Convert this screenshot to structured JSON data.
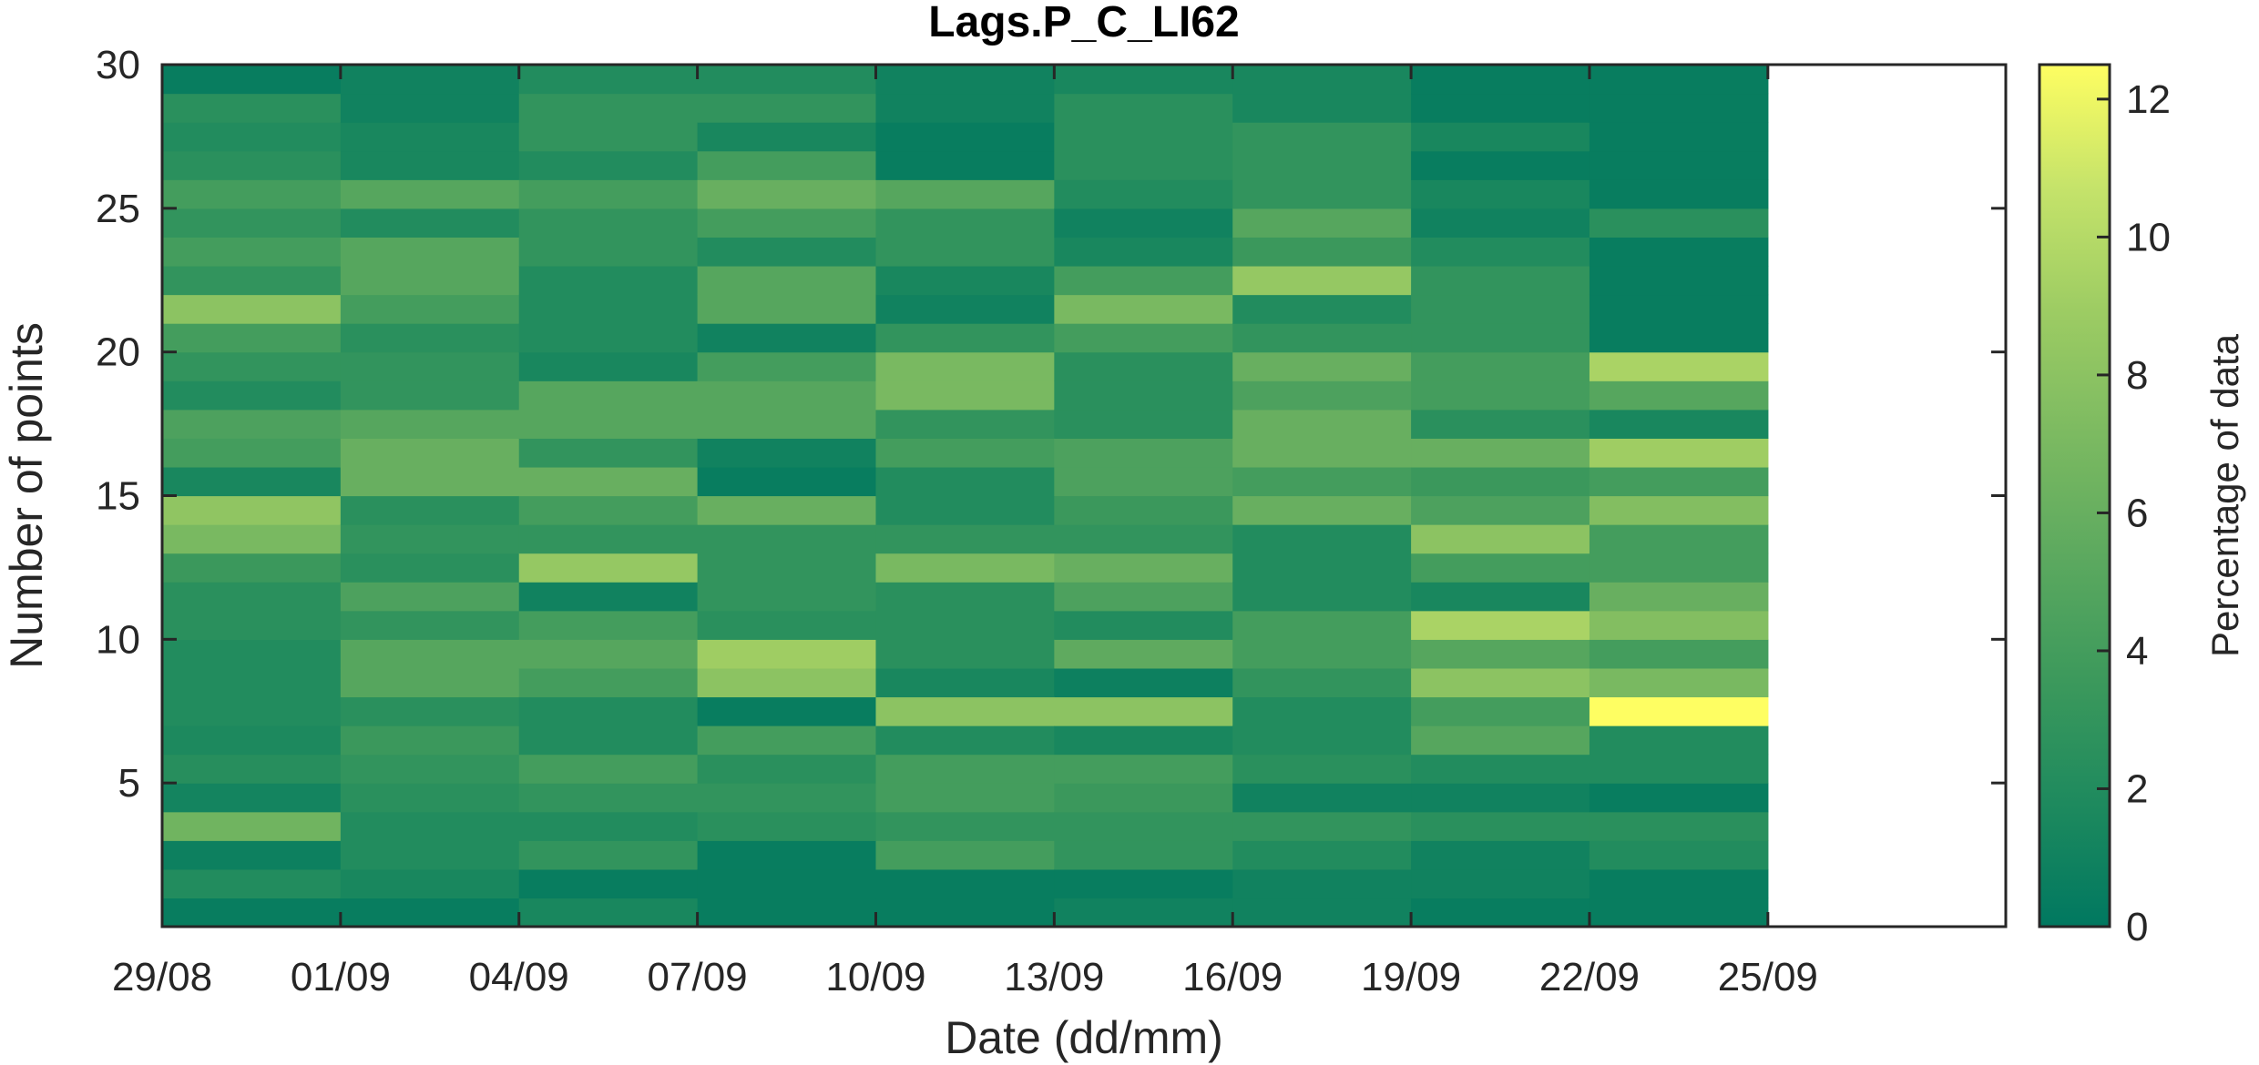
{
  "chart_data": {
    "type": "heatmap",
    "title": "Lags.P_C_LI62",
    "xlabel": "Date (dd/mm)",
    "ylabel": "Number of points",
    "colorbar_label": "Percentage of data",
    "x_tick_labels": [
      "29/08",
      "01/09",
      "04/09",
      "07/09",
      "10/09",
      "13/09",
      "16/09",
      "19/09",
      "22/09",
      "25/09"
    ],
    "y_ticks": [
      5,
      10,
      15,
      20,
      25,
      30
    ],
    "colorbar_ticks": [
      0,
      2,
      4,
      6,
      8,
      10,
      12
    ],
    "colorbar_range": [
      0,
      12.5
    ],
    "colormap": [
      "#007860",
      "#1e8a5e",
      "#3c995c",
      "#5ca95f",
      "#7cba61",
      "#9dcc63",
      "#c5e36a",
      "#fefe62"
    ],
    "x_range": [
      "29/08",
      "29/09"
    ],
    "y_range": [
      0,
      30
    ],
    "rows": [
      1,
      2,
      3,
      4,
      5,
      6,
      7,
      8,
      9,
      10,
      11,
      12,
      13,
      14,
      15,
      16,
      17,
      18,
      19,
      20,
      21,
      22,
      23,
      24,
      25,
      26,
      27,
      28,
      29,
      30
    ],
    "columns": [
      {
        "start": "29/08",
        "values": [
          0.5,
          2.0,
          0.8,
          6.5,
          1.2,
          2.3,
          1.7,
          2.0,
          2.0,
          2.0,
          2.5,
          2.5,
          3.5,
          7.0,
          8.2,
          1.5,
          4.0,
          4.5,
          2.0,
          3.0,
          4.0,
          8.0,
          3.0,
          4.0,
          3.0,
          4.0,
          2.5,
          2.0,
          2.5,
          0.5
        ]
      },
      {
        "start": "01/09",
        "values": [
          0.5,
          1.5,
          2.0,
          2.0,
          2.5,
          3.0,
          3.5,
          2.5,
          5.0,
          5.0,
          3.0,
          4.5,
          2.5,
          3.0,
          2.5,
          6.0,
          6.0,
          5.0,
          3.0,
          3.0,
          2.5,
          4.0,
          5.0,
          5.0,
          2.0,
          5.0,
          1.5,
          1.5,
          1.0,
          1.0
        ]
      },
      {
        "start": "04/09",
        "values": [
          1.5,
          0.5,
          3.0,
          2.0,
          3.0,
          4.0,
          2.0,
          2.0,
          4.0,
          5.0,
          4.0,
          1.0,
          8.5,
          3.0,
          4.0,
          6.0,
          3.0,
          5.0,
          5.0,
          1.5,
          2.0,
          2.0,
          2.0,
          3.0,
          3.0,
          4.0,
          2.0,
          3.0,
          3.0,
          2.0
        ]
      },
      {
        "start": "07/09",
        "values": [
          0.5,
          0.5,
          0.5,
          2.5,
          3.0,
          2.5,
          4.0,
          0.5,
          8.0,
          9.0,
          2.5,
          3.0,
          3.0,
          3.0,
          6.0,
          0.5,
          1.0,
          5.0,
          5.0,
          4.0,
          1.0,
          5.0,
          5.0,
          2.0,
          4.0,
          6.0,
          4.0,
          1.5,
          3.0,
          2.0
        ]
      },
      {
        "start": "10/09",
        "values": [
          0.5,
          0.5,
          4.0,
          3.0,
          4.0,
          4.0,
          2.0,
          8.0,
          1.5,
          2.5,
          2.5,
          2.5,
          7.0,
          3.0,
          2.0,
          2.0,
          4.0,
          3.0,
          7.0,
          7.0,
          3.0,
          1.0,
          1.5,
          3.0,
          3.0,
          5.0,
          0.5,
          0.5,
          1.0,
          1.0
        ]
      },
      {
        "start": "13/09",
        "values": [
          1.0,
          0.5,
          3.0,
          3.0,
          3.5,
          4.0,
          1.5,
          8.0,
          0.8,
          5.5,
          2.0,
          4.5,
          6.0,
          3.0,
          3.5,
          4.5,
          4.5,
          2.5,
          2.5,
          2.5,
          4.0,
          7.0,
          4.0,
          1.5,
          1.0,
          2.0,
          2.5,
          2.5,
          2.5,
          1.5
        ]
      },
      {
        "start": "16/09",
        "values": [
          1.0,
          1.0,
          2.0,
          3.0,
          1.0,
          2.5,
          2.0,
          2.0,
          3.0,
          4.0,
          4.0,
          2.0,
          2.0,
          2.0,
          6.0,
          4.0,
          6.0,
          6.0,
          4.5,
          6.0,
          3.0,
          2.0,
          8.5,
          3.5,
          5.0,
          3.0,
          3.0,
          3.0,
          1.5,
          1.5
        ]
      },
      {
        "start": "19/09",
        "values": [
          0.5,
          1.0,
          1.0,
          2.5,
          1.0,
          2.0,
          5.0,
          4.0,
          8.0,
          5.0,
          9.5,
          1.5,
          4.0,
          8.0,
          4.5,
          3.5,
          6.0,
          2.5,
          4.0,
          4.0,
          3.0,
          3.0,
          3.0,
          2.0,
          1.0,
          1.5,
          0.5,
          1.5,
          0.5,
          0.5
        ]
      },
      {
        "start": "22/09",
        "values": [
          0.5,
          0.5,
          2.0,
          2.5,
          0.5,
          2.0,
          2.0,
          12.5,
          7.0,
          4.0,
          7.5,
          6.0,
          4.0,
          4.0,
          7.5,
          4.0,
          9.0,
          1.5,
          5.0,
          9.5,
          0.5,
          0.5,
          0.5,
          0.5,
          2.5,
          0.5,
          0.5,
          0.5,
          0.5,
          0.5
        ]
      }
    ]
  }
}
